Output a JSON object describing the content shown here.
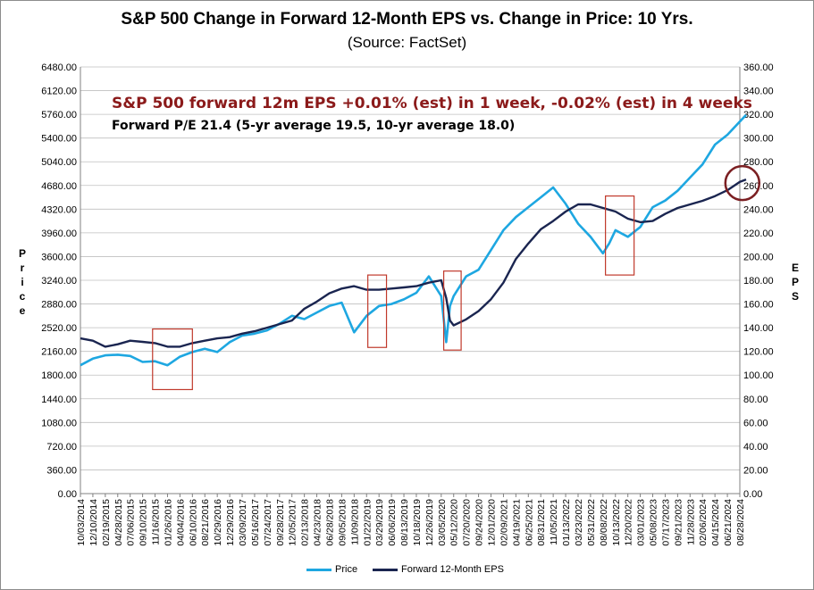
{
  "chart_data": {
    "type": "line",
    "title": "S&P 500 Change in Forward 12-Month EPS vs. Change in Price: 10 Yrs.",
    "subtitle": "(Source: FactSet)",
    "annotation_primary": "S&P 500 forward 12m EPS +0.01% (est) in 1 week, -0.02% (est) in 4 weeks",
    "annotation_secondary": "Forward P/E 21.4 (5-yr average 19.5, 10-yr average 18.0)",
    "ylabel_left": "Price",
    "ylabel_right": "EPS",
    "ylim_left": [
      0,
      6480
    ],
    "ylim_right": [
      0,
      360
    ],
    "left_ticks": [
      "0.00",
      "360.00",
      "720.00",
      "1080.00",
      "1440.00",
      "1800.00",
      "2160.00",
      "2520.00",
      "2880.00",
      "3240.00",
      "3600.00",
      "3960.00",
      "4320.00",
      "4680.00",
      "5040.00",
      "5400.00",
      "5760.00",
      "6120.00",
      "6480.00"
    ],
    "right_ticks": [
      "0.00",
      "20.00",
      "40.00",
      "60.00",
      "80.00",
      "100.00",
      "120.00",
      "140.00",
      "160.00",
      "180.00",
      "200.00",
      "220.00",
      "240.00",
      "260.00",
      "280.00",
      "300.00",
      "320.00",
      "340.00",
      "360.00"
    ],
    "x_ticks": [
      "10/03/2014",
      "12/10/2014",
      "02/19/2015",
      "04/28/2015",
      "07/06/2015",
      "09/10/2015",
      "11/16/2015",
      "01/26/2016",
      "04/04/2016",
      "06/10/2016",
      "08/21/2016",
      "10/29/2016",
      "12/29/2016",
      "03/09/2017",
      "05/16/2017",
      "07/24/2017",
      "09/28/2017",
      "12/05/2017",
      "02/13/2018",
      "04/23/2018",
      "06/28/2018",
      "09/05/2018",
      "11/09/2018",
      "01/22/2019",
      "03/29/2019",
      "06/06/2019",
      "08/13/2019",
      "10/18/2019",
      "12/26/2019",
      "03/05/2020",
      "05/12/2020",
      "07/20/2020",
      "09/24/2020",
      "12/01/2020",
      "02/09/2021",
      "04/19/2021",
      "06/25/2021",
      "08/31/2021",
      "11/05/2021",
      "01/13/2022",
      "03/23/2022",
      "05/31/2022",
      "08/08/2022",
      "10/13/2022",
      "12/20/2022",
      "03/01/2023",
      "05/08/2023",
      "07/17/2023",
      "09/21/2023",
      "11/28/2023",
      "02/06/2024",
      "04/15/2024",
      "06/21/2024",
      "08/28/2024"
    ],
    "grid": true,
    "legend_position": "bottom",
    "series": [
      {
        "name": "Price",
        "axis": "left",
        "color": "#1ea7e1",
        "x": [
          0,
          1,
          2,
          3,
          4,
          5,
          6,
          7,
          8,
          9,
          10,
          11,
          12,
          13,
          14,
          15,
          16,
          17,
          18,
          19,
          20,
          21,
          22,
          23,
          24,
          25,
          26,
          27,
          28,
          29,
          29.4,
          29.7,
          30,
          31,
          32,
          33,
          34,
          35,
          36,
          37,
          38,
          39,
          40,
          41,
          42,
          42.5,
          43,
          44,
          45,
          46,
          47,
          48,
          49,
          50,
          51,
          52,
          53,
          53.5
        ],
        "values": [
          1950,
          2050,
          2100,
          2110,
          2090,
          2000,
          2010,
          1950,
          2080,
          2150,
          2200,
          2150,
          2300,
          2400,
          2430,
          2480,
          2580,
          2700,
          2650,
          2750,
          2850,
          2900,
          2450,
          2700,
          2850,
          2880,
          2950,
          3050,
          3300,
          3000,
          2300,
          2850,
          3000,
          3300,
          3400,
          3700,
          4000,
          4200,
          4350,
          4500,
          4650,
          4400,
          4100,
          3900,
          3650,
          3800,
          4000,
          3900,
          4050,
          4350,
          4450,
          4600,
          4800,
          5000,
          5300,
          5450,
          5650,
          5750
        ]
      },
      {
        "name": "Forward 12-Month EPS",
        "axis": "right",
        "color": "#1a2550",
        "x": [
          0,
          1,
          2,
          3,
          4,
          5,
          6,
          7,
          8,
          9,
          10,
          11,
          12,
          13,
          14,
          15,
          16,
          17,
          18,
          19,
          20,
          21,
          22,
          23,
          24,
          25,
          26,
          27,
          28,
          29,
          29.4,
          29.7,
          30,
          31,
          32,
          33,
          34,
          35,
          36,
          37,
          38,
          39,
          40,
          41,
          42,
          43,
          44,
          45,
          46,
          47,
          48,
          49,
          50,
          51,
          52,
          53,
          53.5
        ],
        "values": [
          131,
          129,
          124,
          126,
          129,
          128,
          127,
          124,
          124,
          127,
          129,
          131,
          132,
          135,
          137,
          140,
          143,
          146,
          156,
          162,
          169,
          173,
          175,
          172,
          172,
          173,
          174,
          175,
          178,
          180,
          165,
          146,
          142,
          147,
          154,
          164,
          178,
          198,
          211,
          223,
          230,
          238,
          244,
          244,
          241,
          238,
          232,
          229,
          230,
          236,
          241,
          244,
          247,
          251,
          256,
          263,
          265
        ]
      }
    ],
    "highlight_boxes": [
      {
        "x0": 5.8,
        "x1": 9.0,
        "y0": 1580,
        "y1": 2500
      },
      {
        "x0": 23.1,
        "x1": 24.6,
        "y0": 2220,
        "y1": 3320
      },
      {
        "x0": 29.2,
        "x1": 30.6,
        "y0": 2180,
        "y1": 3380
      },
      {
        "x0": 42.2,
        "x1": 44.5,
        "y0": 3320,
        "y1": 4520
      }
    ],
    "highlight_circle": {
      "x": 53.2,
      "y_right": 262
    },
    "legend": [
      {
        "label": "Price",
        "color": "#1ea7e1"
      },
      {
        "label": "Forward 12-Month EPS",
        "color": "#1a2550"
      }
    ]
  }
}
